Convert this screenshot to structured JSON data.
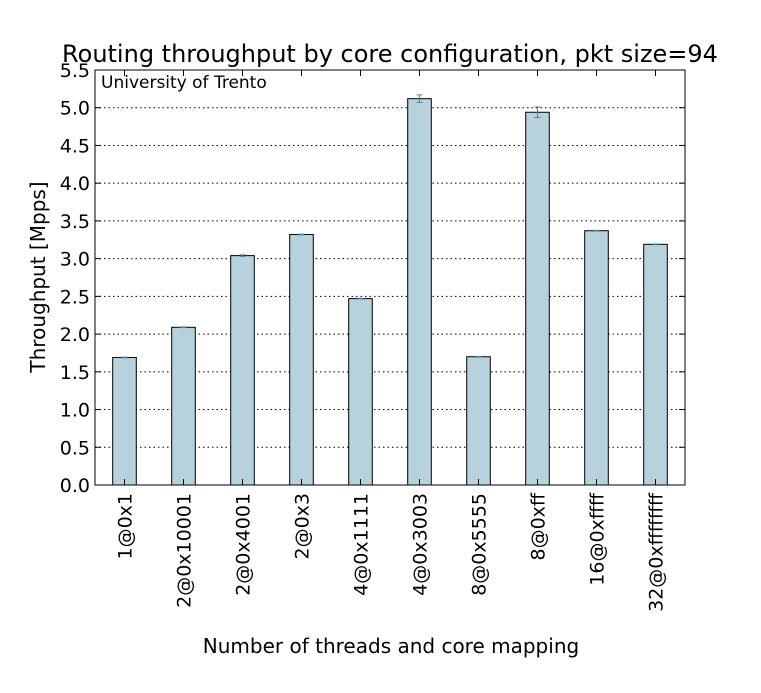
{
  "chart_data": {
    "type": "bar",
    "title": "Routing throughput by core configuration, pkt size=94",
    "xlabel": "Number of threads and core mapping",
    "ylabel": "Throughput [Mpps]",
    "annotation": "University of Trento",
    "categories": [
      "1@0x1",
      "2@0x10001",
      "2@0x4001",
      "2@0x3",
      "4@0x1111",
      "4@0x3003",
      "8@0x5555",
      "8@0xff",
      "16@0xffff",
      "32@0xffffffff"
    ],
    "values": [
      1.69,
      2.09,
      3.04,
      3.32,
      2.47,
      5.12,
      1.7,
      4.94,
      3.37,
      3.19
    ],
    "errors": [
      0.005,
      0.005,
      0.01,
      0.005,
      0.005,
      0.05,
      0.005,
      0.07,
      0.005,
      0.005
    ],
    "ylim": [
      0,
      5.5
    ],
    "yticks": [
      "0.0",
      "0.5",
      "1.0",
      "1.5",
      "2.0",
      "2.5",
      "3.0",
      "3.5",
      "4.0",
      "4.5",
      "5.0",
      "5.5"
    ],
    "grid": true,
    "bar_color": "#b7d2dc",
    "error_color": "#4682b4"
  }
}
